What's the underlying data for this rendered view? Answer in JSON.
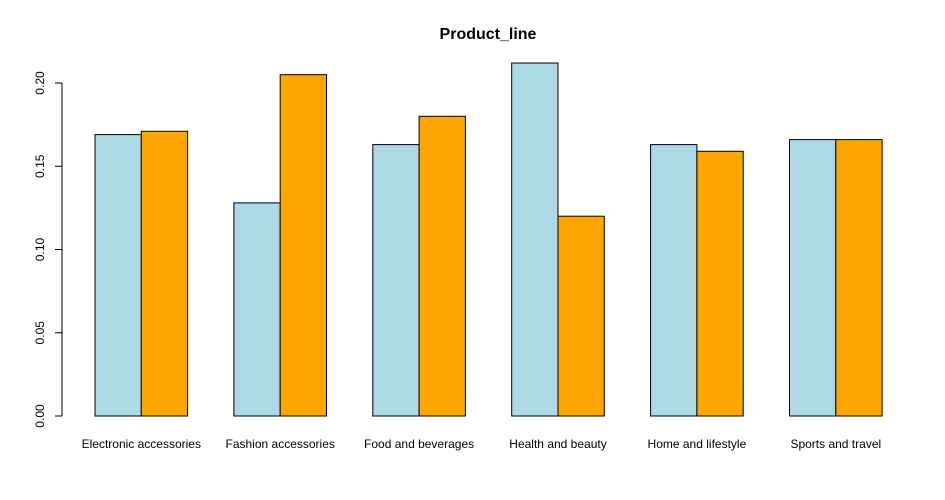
{
  "chart_data": {
    "type": "bar",
    "title": "Product_line",
    "xlabel": "",
    "ylabel": "",
    "categories": [
      "Electronic accessories",
      "Fashion accessories",
      "Food and beverages",
      "Health and beauty",
      "Home and lifestyle",
      "Sports and travel"
    ],
    "series": [
      {
        "values": [
          0.169,
          0.128,
          0.163,
          0.212,
          0.163,
          0.166
        ],
        "color": "#add8e6"
      },
      {
        "values": [
          0.171,
          0.205,
          0.18,
          0.12,
          0.159,
          0.166
        ],
        "color": "#ffa500"
      }
    ],
    "ylim": [
      0,
      0.2
    ],
    "yticks": [
      "0.00",
      "0.05",
      "0.10",
      "0.15",
      "0.20"
    ],
    "grid": false,
    "legend": "none"
  }
}
